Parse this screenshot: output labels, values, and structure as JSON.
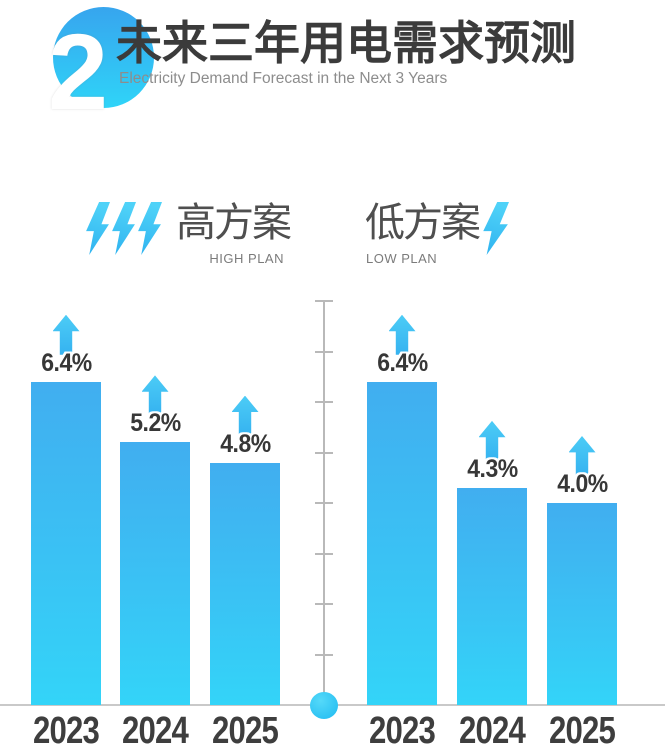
{
  "header": {
    "section_number": "2",
    "title": "未来三年用电需求预测",
    "subtitle": "Electricity Demand Forecast in the Next 3 Years"
  },
  "icons": {
    "lightning_bolt": "⚡",
    "up_arrow": "↑",
    "high_plan_bolt_count": 3,
    "low_plan_bolt_count": 1
  },
  "colors": {
    "bar_top": "#41aef0",
    "bar_bottom": "#33d4f8",
    "accent_cyan": "#38c6f7",
    "badge_gradient_top": "#37a5ee",
    "badge_gradient_bottom": "#2fd4f8",
    "title_dark": "#3b3b3b",
    "subtitle_gray": "#8d8d8d",
    "axis_gray": "#b9b9b9",
    "baseline_gray": "#c9c9c9"
  },
  "chart_data": {
    "type": "bar",
    "categories": [
      "2023",
      "2024",
      "2025"
    ],
    "series": [
      {
        "name": "高方案",
        "name_en": "HIGH PLAN",
        "values": [
          6.4,
          5.2,
          4.8
        ],
        "labels": [
          "6.4%",
          "5.2%",
          "4.8%"
        ]
      },
      {
        "name": "低方案",
        "name_en": "LOW PLAN",
        "values": [
          6.4,
          4.3,
          4.0
        ],
        "labels": [
          "6.4%",
          "4.3%",
          "4.0%"
        ]
      }
    ],
    "unit": "percent",
    "ylim": [
      0,
      8
    ],
    "tick_interval": 1,
    "axis_style": "central-vertical-divider-with-ticks-and-origin-dot",
    "grid": false,
    "legend_position": "above-chart",
    "value_marker": "up-arrow-above-each-bar"
  }
}
